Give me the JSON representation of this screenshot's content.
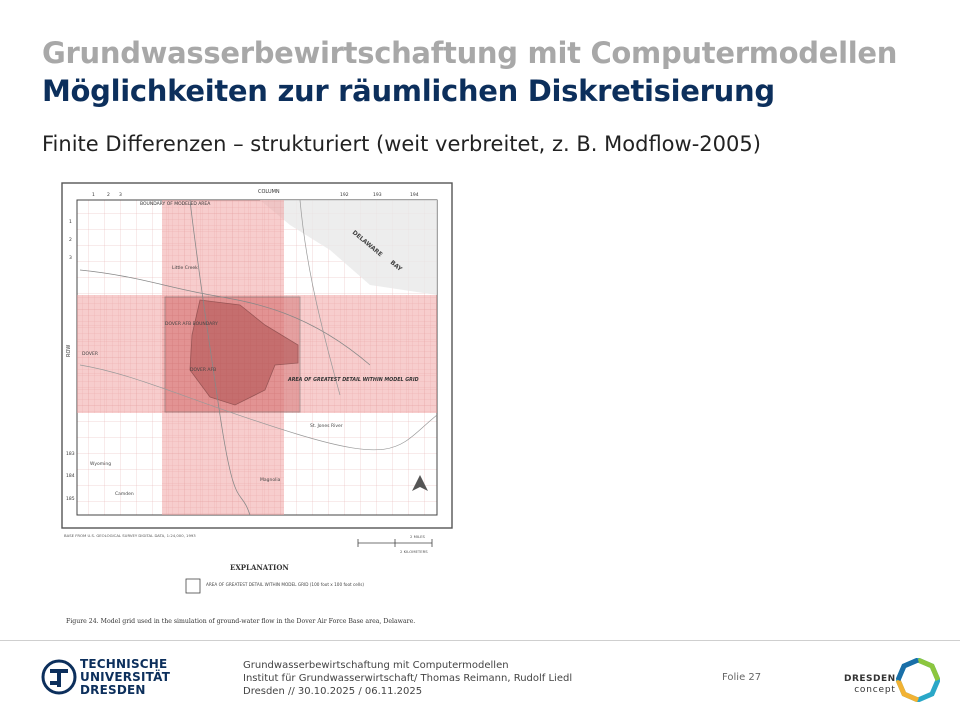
{
  "header": {
    "title": "Grundwasserbewirtschaftung mit Computermodellen",
    "subtitle": "Möglichkeiten zur räumlichen Diskretisierung"
  },
  "content": {
    "heading": "Finite Differenzen – strukturiert (weit verbreitet, z. B. Modflow-2005)"
  },
  "figure": {
    "column_label": "COLUMN",
    "row_label": "ROW",
    "col_numbers": [
      "1",
      "2",
      "3",
      "192",
      "193",
      "194"
    ],
    "row_numbers": [
      "1",
      "2",
      "3",
      "183",
      "184",
      "185"
    ],
    "boundary_label": "BOUNDARY OF MODELED AREA",
    "places": [
      "Little Creek",
      "DOVER AFB BOUNDARY",
      "DOVER",
      "DOVER AFB",
      "Wyoming",
      "Camden",
      "Magnolia",
      "St. Jones River",
      "DELAWARE",
      "BAY"
    ],
    "detail_label": "AREA OF GREATEST DETAIL WITHIN MODEL GRID",
    "base_note": "BASE FROM U.S. GEOLOGICAL SURVEY DIGITAL DATA, 1:24,000, 1993",
    "scale_miles": "2 MILES",
    "scale_km": "2 KILOMETERS",
    "explanation_title": "EXPLANATION",
    "legend_text": "AREA OF GREATEST DETAIL WITHIN MODEL GRID (100 foot x 100 foot cells)",
    "caption": "Figure 24. Model grid used in the simulation of ground-water flow in the Dover Air Force Base area, Delaware."
  },
  "footer": {
    "university": [
      "TECHNISCHE",
      "UNIVERSITÄT",
      "DRESDEN"
    ],
    "line1": "Grundwasserbewirtschaftung mit Computermodellen",
    "line2": "Institut für Grundwasserwirtschaft/ Thomas Reimann, Rudolf Liedl",
    "line3": "Dresden // 30.10.2025 / 06.11.2025",
    "folio_label": "Folie",
    "page_number": "27",
    "partner_name": "DRESDEN",
    "partner_sub": "concept"
  }
}
